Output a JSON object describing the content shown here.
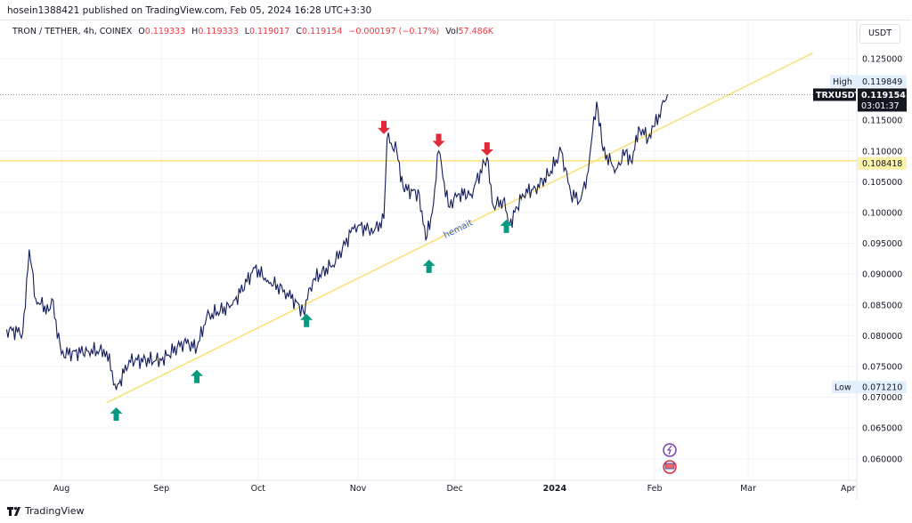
{
  "header": {
    "published": "hosein1388421 published on TradingView.com, Feb 05, 2024 16:28 UTC+3:30"
  },
  "legend": {
    "symbol": "TRON / TETHER, 4h, COINEX",
    "o_label": "O",
    "o": "0.119333",
    "h_label": "H",
    "h": "0.119333",
    "l_label": "L",
    "l": "0.119017",
    "c_label": "C",
    "c": "0.119154",
    "change": "−0.000197 (−0.17%)",
    "vol_label": "Vol",
    "vol": "57.486K"
  },
  "currency_button": "USDT",
  "footer": {
    "brand": "TradingView"
  },
  "colors": {
    "candles": "#131c5c",
    "trendline": "#f7e37a",
    "up_arrow": "#089981",
    "down_arrow": "#e02a3a",
    "hline": "#f7e37a"
  },
  "chart_data": {
    "type": "line",
    "symbol": "TRXUSDT",
    "ylim": [
      0.058,
      0.127
    ],
    "y_ticks": [
      "0.125000",
      "0.115000",
      "0.110000",
      "0.105000",
      "0.100000",
      "0.095000",
      "0.090000",
      "0.085000",
      "0.080000",
      "0.075000",
      "0.070000",
      "0.065000",
      "0.060000"
    ],
    "x_ticks": [
      {
        "label": "Aug",
        "date": "2023-08-01"
      },
      {
        "label": "Sep",
        "date": "2023-09-01"
      },
      {
        "label": "Oct",
        "date": "2023-10-01"
      },
      {
        "label": "Nov",
        "date": "2023-11-01"
      },
      {
        "label": "Dec",
        "date": "2023-12-01"
      },
      {
        "label": "2024",
        "date": "2024-01-01"
      },
      {
        "label": "Feb",
        "date": "2024-02-01"
      },
      {
        "label": "Mar",
        "date": "2024-03-01"
      },
      {
        "label": "Apr",
        "date": "2024-04-01"
      }
    ],
    "grid": true,
    "price": [
      [
        "2023-07-15",
        0.081
      ],
      [
        "2023-07-20",
        0.0805
      ],
      [
        "2023-07-22",
        0.094
      ],
      [
        "2023-07-24",
        0.086
      ],
      [
        "2023-07-28",
        0.084
      ],
      [
        "2023-07-29",
        0.086
      ],
      [
        "2023-08-01",
        0.077
      ],
      [
        "2023-08-09",
        0.0775
      ],
      [
        "2023-08-15",
        0.0775
      ],
      [
        "2023-08-18",
        0.0712
      ],
      [
        "2023-08-22",
        0.076
      ],
      [
        "2023-09-01",
        0.076
      ],
      [
        "2023-09-08",
        0.079
      ],
      [
        "2023-09-12",
        0.078
      ],
      [
        "2023-09-15",
        0.083
      ],
      [
        "2023-09-23",
        0.085
      ],
      [
        "2023-09-30",
        0.091
      ],
      [
        "2023-10-04",
        0.089
      ],
      [
        "2023-10-10",
        0.087
      ],
      [
        "2023-10-15",
        0.084
      ],
      [
        "2023-10-18",
        0.089
      ],
      [
        "2023-10-25",
        0.092
      ],
      [
        "2023-10-31",
        0.098
      ],
      [
        "2023-11-06",
        0.097
      ],
      [
        "2023-11-09",
        0.099
      ],
      [
        "2023-11-10",
        0.112
      ],
      [
        "2023-11-13",
        0.11
      ],
      [
        "2023-11-15",
        0.104
      ],
      [
        "2023-11-20",
        0.103
      ],
      [
        "2023-11-22",
        0.0955
      ],
      [
        "2023-11-24",
        0.1
      ],
      [
        "2023-11-26",
        0.11
      ],
      [
        "2023-11-29",
        0.101
      ],
      [
        "2023-12-02",
        0.103
      ],
      [
        "2023-12-06",
        0.103
      ],
      [
        "2023-12-11",
        0.109
      ],
      [
        "2023-12-13",
        0.101
      ],
      [
        "2023-12-16",
        0.102
      ],
      [
        "2023-12-18",
        0.098
      ],
      [
        "2023-12-22",
        0.103
      ],
      [
        "2023-12-26",
        0.104
      ],
      [
        "2023-12-30",
        0.106
      ],
      [
        "2024-01-03",
        0.11
      ],
      [
        "2024-01-06",
        0.103
      ],
      [
        "2024-01-09",
        0.102
      ],
      [
        "2024-01-11",
        0.106
      ],
      [
        "2024-01-14",
        0.118
      ],
      [
        "2024-01-16",
        0.11
      ],
      [
        "2024-01-20",
        0.107
      ],
      [
        "2024-01-23",
        0.11
      ],
      [
        "2024-01-25",
        0.108
      ],
      [
        "2024-01-27",
        0.114
      ],
      [
        "2024-01-30",
        0.112
      ],
      [
        "2024-02-01",
        0.114
      ],
      [
        "2024-02-04",
        0.118
      ],
      [
        "2024-02-05",
        0.1192
      ]
    ],
    "trendline": {
      "start": [
        "2023-08-15",
        0.0691
      ],
      "end": [
        "2024-03-21",
        0.1259
      ],
      "label": "hemait"
    },
    "horizontal_line": {
      "price": 0.108418,
      "label": "0.108418"
    },
    "high": {
      "label": "High",
      "value": "0.119849"
    },
    "low": {
      "label": "Low",
      "value": "0.071210"
    },
    "last": {
      "symbol": "TRXUSDT",
      "value": "0.119154",
      "countdown": "03:01:37"
    },
    "up_arrows": [
      [
        "2023-08-18",
        0.0672
      ],
      [
        "2023-09-12",
        0.0733
      ],
      [
        "2023-10-16",
        0.0824
      ],
      [
        "2023-11-23",
        0.0912
      ],
      [
        "2023-12-17",
        0.0977
      ]
    ],
    "down_arrows": [
      [
        "2023-11-09",
        0.1139
      ],
      [
        "2023-11-26",
        0.1118
      ],
      [
        "2023-12-11",
        0.1104
      ]
    ]
  }
}
